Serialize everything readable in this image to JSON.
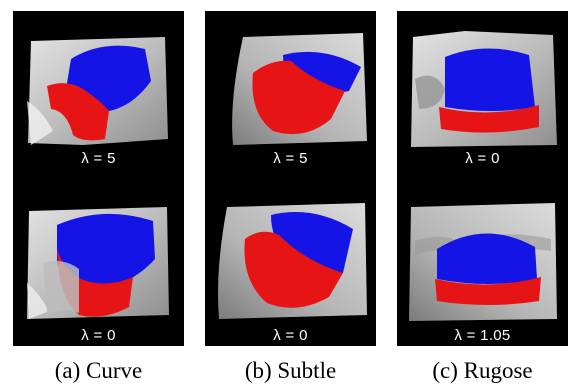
{
  "panels": [
    {
      "caption": "(a) Curve",
      "top_label": "λ = 5",
      "bottom_label": "λ = 0"
    },
    {
      "caption": "(b) Subtle",
      "top_label": "λ = 5",
      "bottom_label": "λ = 0"
    },
    {
      "caption": "(c) Rugose",
      "top_label": "λ = 0",
      "bottom_label": "λ = 1.05"
    }
  ],
  "colors": {
    "segment_a": "#1414e6",
    "segment_b": "#e61414",
    "surface": "#b8b8b8",
    "background": "#000000",
    "label_text": "#ffffff"
  }
}
